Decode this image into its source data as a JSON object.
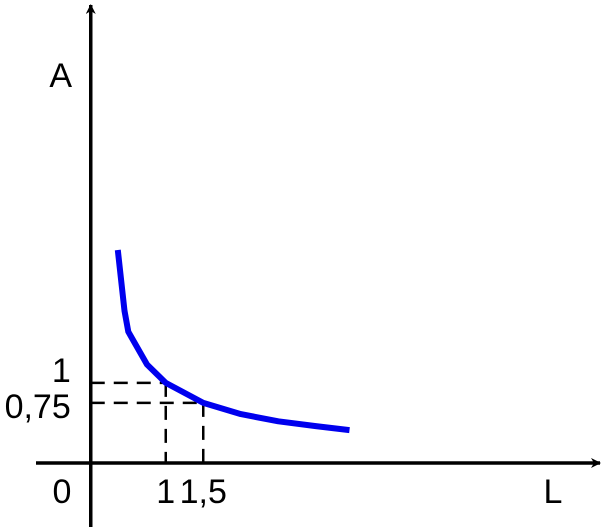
{
  "chart_data": {
    "type": "line",
    "x_label": "L",
    "y_label": "A",
    "origin_label": "0",
    "x": [
      0.36,
      0.45,
      0.5,
      0.75,
      1,
      1.5,
      2,
      2.5,
      3,
      3.45
    ],
    "series": [
      {
        "color": "#0000ee",
        "values": [
          2.66,
          1.9,
          1.64,
          1.23,
          1,
          0.75,
          0.61,
          0.52,
          0.46,
          0.41
        ]
      }
    ],
    "xlim": [
      -0.73,
      6.79
    ],
    "ylim": [
      -0.8,
      5.72
    ],
    "xticks": [
      {
        "value": 1,
        "label": "1"
      },
      {
        "value": 1.5,
        "label": "1,5"
      }
    ],
    "yticks": [
      {
        "value": 1,
        "label": "1"
      },
      {
        "value": 0.75,
        "label": "0,75"
      }
    ],
    "guides": true
  }
}
